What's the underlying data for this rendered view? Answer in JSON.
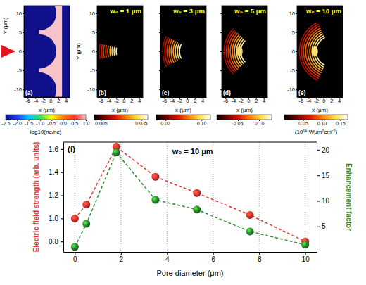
{
  "chart_data": [
    {
      "type": "image",
      "label": "(a)",
      "xlabel": "x (μm)",
      "ylabel": "Y (μm)",
      "xlim": [
        -7,
        5
      ],
      "xticks": [
        -6,
        -4,
        -2,
        0,
        2,
        4
      ],
      "ylim": [
        -12,
        12
      ],
      "yticks": [
        -10,
        -5,
        0,
        5,
        10
      ],
      "colorbar": {
        "range": [
          -2.5,
          1
        ],
        "ticks": [
          -2.5,
          {
            "value": -2,
            "label": "-2.0"
          },
          -1.5,
          {
            "value": -1,
            "label": "-1.0"
          },
          -0.5,
          {
            "value": 0,
            "label": "0.0"
          },
          0.5,
          {
            "value": 1,
            "label": "1.0"
          }
        ],
        "label": "log10(ne/nc)"
      }
    },
    {
      "type": "image",
      "label": "(b)",
      "title": "w₀ = 1 μm",
      "xlabel": "x (μm)",
      "ylabel": "Y (μm)",
      "xlim": [
        -7,
        5
      ],
      "xticks": [
        -6,
        -4,
        -2,
        0,
        2,
        4
      ],
      "ylim": [
        -12,
        12
      ],
      "yticks": [
        -10,
        -5,
        0,
        5,
        10
      ],
      "colorbar": {
        "range": [
          0,
          0.04
        ],
        "ticks": [
          0.005,
          0.035
        ]
      }
    },
    {
      "type": "image",
      "label": "(c)",
      "title": "w₀ = 3 μm",
      "xlabel": "x (μm)",
      "tick_labels": "x",
      "xlim": [
        -7,
        5
      ],
      "xticks": [
        -6,
        -4,
        -2,
        0,
        2,
        4
      ],
      "ylim": [
        -12,
        12
      ],
      "yticks": [
        -10,
        -5,
        0,
        5,
        10
      ],
      "colorbar": {
        "range": [
          0,
          0.12
        ],
        "ticks": [
          0.02,
          {
            "value": 0.1,
            "label": "0.10"
          }
        ]
      }
    },
    {
      "type": "image",
      "label": "(d)",
      "title": "w₀ = 5 μm",
      "xlabel": "x (μm)",
      "tick_labels": "x",
      "xlim": [
        -7,
        5
      ],
      "xticks": [
        -6,
        -4,
        -2,
        0,
        2,
        4
      ],
      "ylim": [
        -12,
        12
      ],
      "yticks": [
        -10,
        -5,
        0,
        5,
        10
      ],
      "colorbar": {
        "range": [
          0,
          0.13
        ],
        "ticks": [
          0.05,
          {
            "value": 0.1,
            "label": "0.10"
          }
        ]
      }
    },
    {
      "type": "image",
      "label": "(e)",
      "title": "w₀ = 10 μm",
      "xlabel": "x (μm)",
      "xlim": [
        -7,
        5
      ],
      "xticks": [
        -6,
        -4,
        -2,
        0,
        2,
        4
      ],
      "ylim": [
        -12,
        12
      ],
      "yticks": [
        -10,
        -5,
        0,
        5,
        10
      ],
      "colorbar": {
        "range": [
          0,
          0.17
        ],
        "ticks": [
          0.05,
          {
            "value": 0.1,
            "label": "0.10"
          },
          0.15
        ],
        "label": "(10¹⁸ Wμm²cm⁻²)"
      }
    },
    {
      "type": "line",
      "label": "(f)",
      "annotation": "w₀ = 10 μm",
      "xlabel": "Pore diameter (μm)",
      "ylabel": "Electric field strength (arb. units)",
      "y2label": "Enhancement factor",
      "x": [
        0,
        0.5,
        1.8,
        3.5,
        5.3,
        7.6,
        10
      ],
      "xlim": [
        -0.5,
        10.5
      ],
      "xticks": [
        0,
        2,
        4,
        6,
        8,
        10
      ],
      "ylim": [
        0.71,
        1.66
      ],
      "yticks": [
        0.8,
        {
          "value": 1,
          "label": "1.0"
        },
        1.2,
        1.4,
        1.6
      ],
      "y2lim": [
        0,
        21.5
      ],
      "y2ticks": [
        5,
        10,
        15,
        20
      ],
      "grid": "x",
      "series": [
        {
          "color": "#e0352b",
          "marker": "circle",
          "line_style": "dashed",
          "values": [
            1.0,
            1.12,
            1.62,
            1.36,
            1.22,
            1.03,
            0.8
          ]
        },
        {
          "color": "#2e8b2e",
          "marker": "circle",
          "line_style": "dashed",
          "axis": "y2",
          "values": [
            1.0,
            5.5,
            19.5,
            10.2,
            8.3,
            4.0,
            1.4
          ]
        }
      ]
    }
  ]
}
